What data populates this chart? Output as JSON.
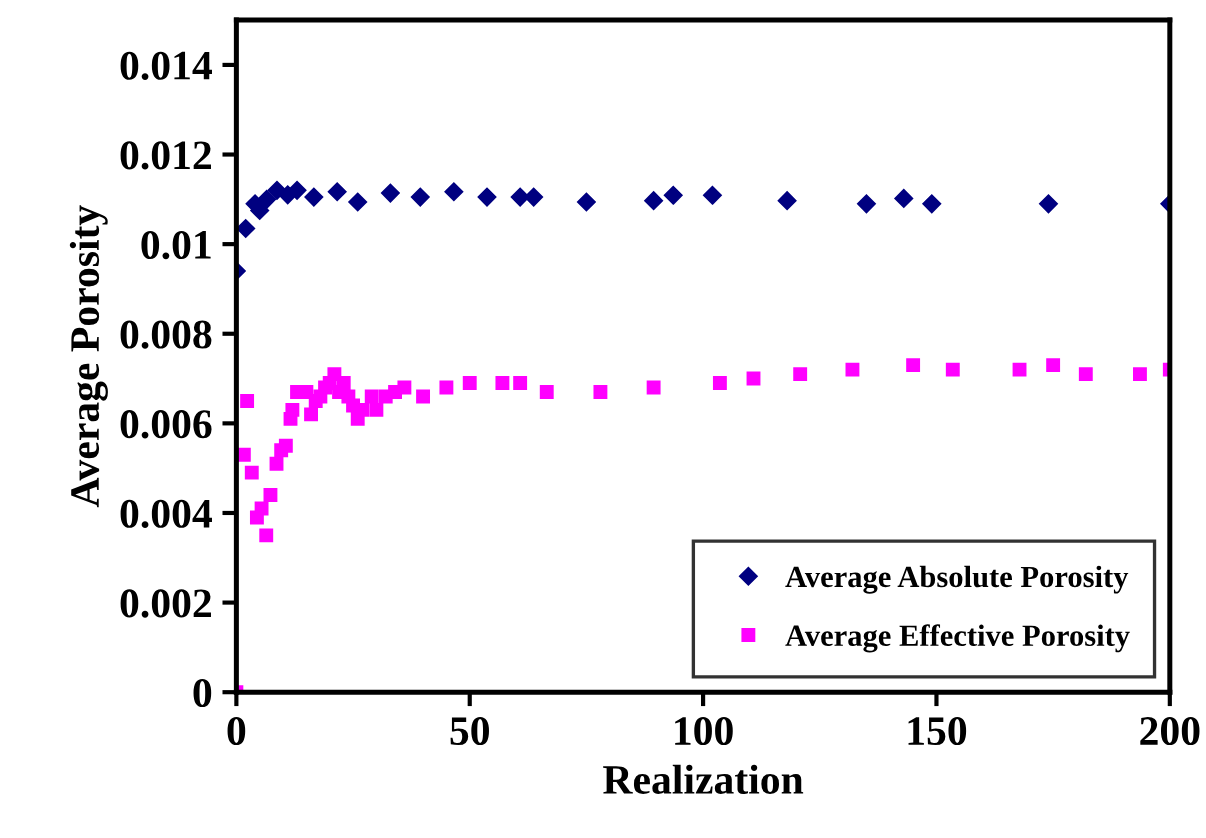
{
  "chart_data": {
    "type": "scatter",
    "xlabel": "Realization",
    "ylabel": "Average Porosity",
    "xlim": [
      0,
      200
    ],
    "xticks": [
      0,
      50,
      100,
      150,
      200
    ],
    "ylim": [
      0,
      0.015
    ],
    "yticks": [
      0,
      0.002,
      0.004,
      0.006,
      0.008,
      0.01,
      0.012,
      0.014
    ],
    "grid": false,
    "legend": "bottom right",
    "series": [
      {
        "name": "Average Absolute Porosity",
        "color": "#000080",
        "marker": "diamond",
        "x": [
          0,
          2,
          4,
          5,
          6.5,
          8.7,
          11,
          13,
          16.6,
          21.6,
          26,
          33,
          39.4,
          46.6,
          53.7,
          60.8,
          63.7,
          75,
          89.4,
          93.6,
          102,
          118,
          135,
          143,
          149,
          174,
          200
        ],
        "values": [
          0.0094,
          0.01035,
          0.0109,
          0.01075,
          0.011,
          0.0112,
          0.0111,
          0.0112,
          0.01105,
          0.01117,
          0.01094,
          0.01114,
          0.01105,
          0.01117,
          0.01105,
          0.01105,
          0.01105,
          0.01094,
          0.01097,
          0.01109,
          0.01109,
          0.01097,
          0.0109,
          0.01102,
          0.0109,
          0.0109,
          0.0109
        ]
      },
      {
        "name": "Average Effective Porosity",
        "color": "#ff00ff",
        "marker": "square",
        "x": [
          0,
          1.6,
          2.3,
          3.3,
          4.4,
          5.4,
          6.4,
          7.3,
          8.6,
          9.6,
          10.6,
          11.6,
          12,
          13,
          15,
          16,
          17,
          18,
          19,
          20,
          21,
          22,
          23,
          24,
          25,
          26,
          27,
          29,
          30,
          32,
          34,
          36,
          40,
          45,
          50,
          57,
          60.8,
          66.5,
          78,
          89.4,
          103.6,
          110.8,
          120.8,
          132,
          145,
          153.5,
          167.8,
          175,
          182,
          193.6,
          200
        ],
        "values": [
          0,
          0.0053,
          0.0065,
          0.0049,
          0.0039,
          0.0041,
          0.0035,
          0.0044,
          0.0051,
          0.0054,
          0.0055,
          0.0061,
          0.0063,
          0.0067,
          0.0067,
          0.0062,
          0.0065,
          0.0066,
          0.0068,
          0.0069,
          0.0071,
          0.0067,
          0.0069,
          0.0066,
          0.0064,
          0.0061,
          0.0063,
          0.0066,
          0.0063,
          0.0066,
          0.0067,
          0.0068,
          0.0066,
          0.0068,
          0.0069,
          0.0069,
          0.0069,
          0.0067,
          0.0067,
          0.0068,
          0.0069,
          0.007,
          0.0071,
          0.0072,
          0.0073,
          0.0072,
          0.0072,
          0.0073,
          0.0071,
          0.0071,
          0.0072
        ]
      }
    ]
  }
}
